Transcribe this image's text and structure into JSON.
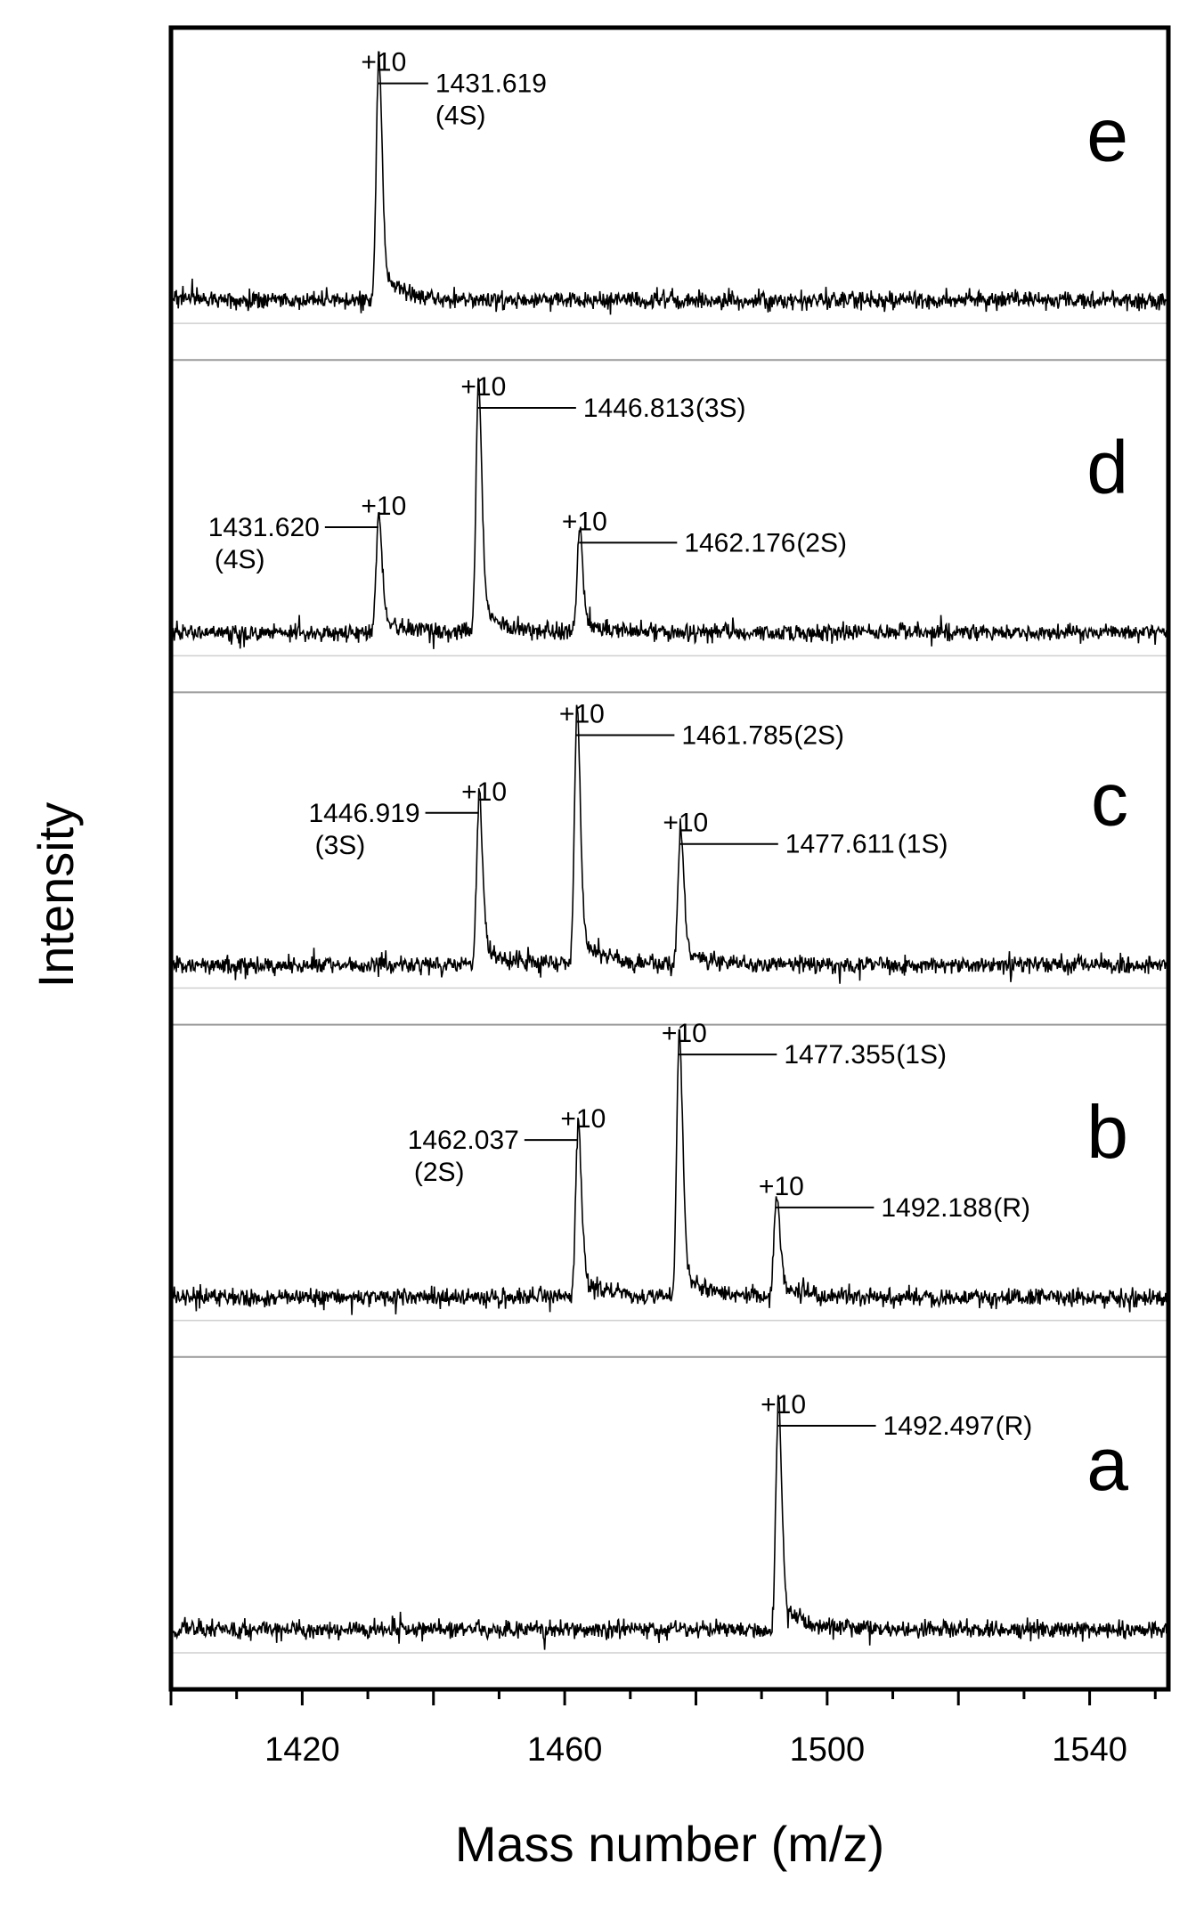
{
  "chart_data": {
    "type": "line",
    "xlabel": "Mass number (m/z)",
    "ylabel": "Intensity",
    "xlim": [
      1400,
      1552
    ],
    "xticks": [
      1420,
      1460,
      1500,
      1540
    ],
    "grid": false,
    "panels": [
      {
        "letter": "e",
        "peaks": [
          {
            "x": 1431.6,
            "height": 0.85,
            "charge": "+10",
            "value": "1431.619",
            "suffix": "(4S)"
          }
        ]
      },
      {
        "letter": "d",
        "peaks": [
          {
            "x": 1431.6,
            "height": 0.42,
            "charge": "+10",
            "value": "1431.620",
            "suffix": "(4S)"
          },
          {
            "x": 1446.8,
            "height": 0.88,
            "charge": "+10",
            "value": "1446.813",
            "suffix": "(3S)"
          },
          {
            "x": 1462.2,
            "height": 0.36,
            "charge": "+10",
            "value": "1462.176",
            "suffix": "(2S)"
          }
        ]
      },
      {
        "letter": "c",
        "peaks": [
          {
            "x": 1446.9,
            "height": 0.6,
            "charge": "+10",
            "value": "1446.919",
            "suffix": "(3S)"
          },
          {
            "x": 1461.8,
            "height": 0.9,
            "charge": "+10",
            "value": "1461.785",
            "suffix": "(2S)"
          },
          {
            "x": 1477.6,
            "height": 0.48,
            "charge": "+10",
            "value": "1477.611",
            "suffix": "(1S)"
          }
        ]
      },
      {
        "letter": "b",
        "peaks": [
          {
            "x": 1462.0,
            "height": 0.62,
            "charge": "+10",
            "value": "1462.037",
            "suffix": "(2S)"
          },
          {
            "x": 1477.4,
            "height": 0.95,
            "charge": "+10",
            "value": "1477.355",
            "suffix": "(1S)"
          },
          {
            "x": 1492.2,
            "height": 0.36,
            "charge": "+10",
            "value": "1492.188",
            "suffix": "(R)"
          }
        ]
      },
      {
        "letter": "a",
        "peaks": [
          {
            "x": 1492.5,
            "height": 0.8,
            "charge": "+10",
            "value": "1492.497",
            "suffix": "(R)"
          }
        ]
      }
    ]
  }
}
